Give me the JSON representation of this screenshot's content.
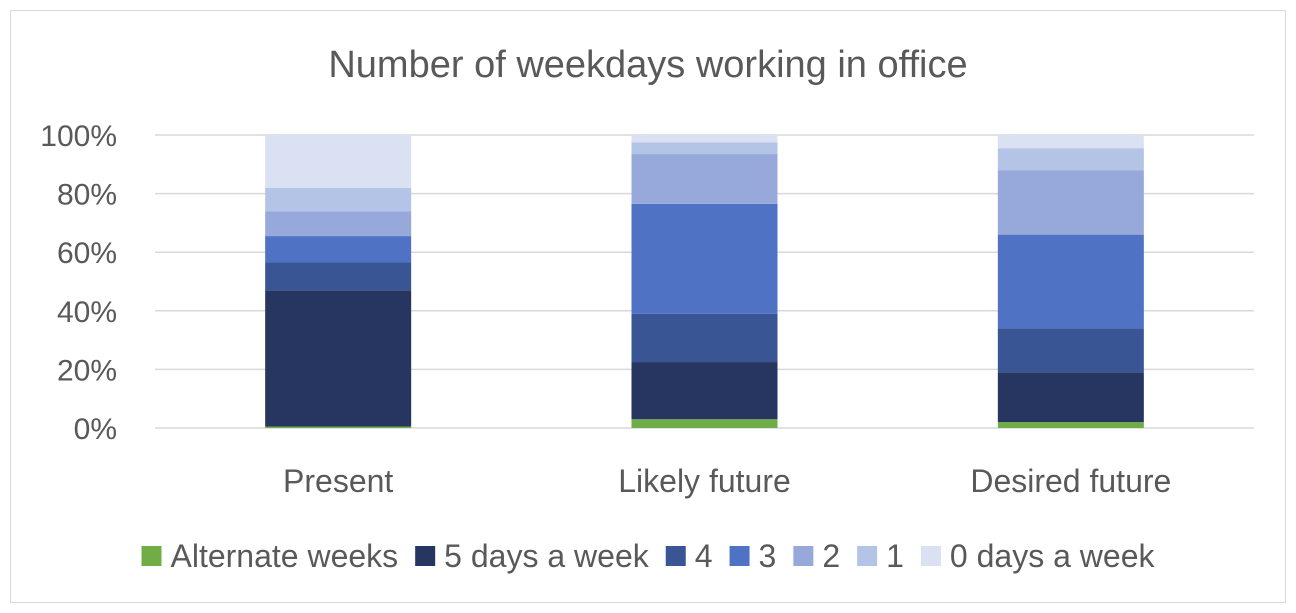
{
  "chart_data": {
    "type": "bar",
    "stacked": true,
    "percent_stacked": true,
    "title": "Number of weekdays working in office",
    "categories": [
      "Present",
      "Likely future",
      "Desired future"
    ],
    "y_ticks": [
      "0%",
      "20%",
      "40%",
      "60%",
      "80%",
      "100%"
    ],
    "ylim": [
      0,
      100
    ],
    "grid": true,
    "legend_position": "bottom",
    "series": [
      {
        "name": "Alternate weeks",
        "color": "#70ad47",
        "values": [
          0.5,
          3,
          2
        ]
      },
      {
        "name": "5 days a week",
        "color": "#263660",
        "values": [
          46.5,
          19.5,
          17
        ]
      },
      {
        "name": "4",
        "color": "#3a5594",
        "values": [
          9.5,
          16.5,
          15
        ]
      },
      {
        "name": "3",
        "color": "#4f72c4",
        "values": [
          9,
          37.5,
          32
        ]
      },
      {
        "name": "2",
        "color": "#96a9da",
        "values": [
          8.5,
          17,
          22
        ]
      },
      {
        "name": "1",
        "color": "#b4c4e6",
        "values": [
          8,
          4,
          7.5
        ]
      },
      {
        "name": "0 days a week",
        "color": "#dae1f2",
        "values": [
          18,
          2.5,
          4.5
        ]
      }
    ]
  }
}
